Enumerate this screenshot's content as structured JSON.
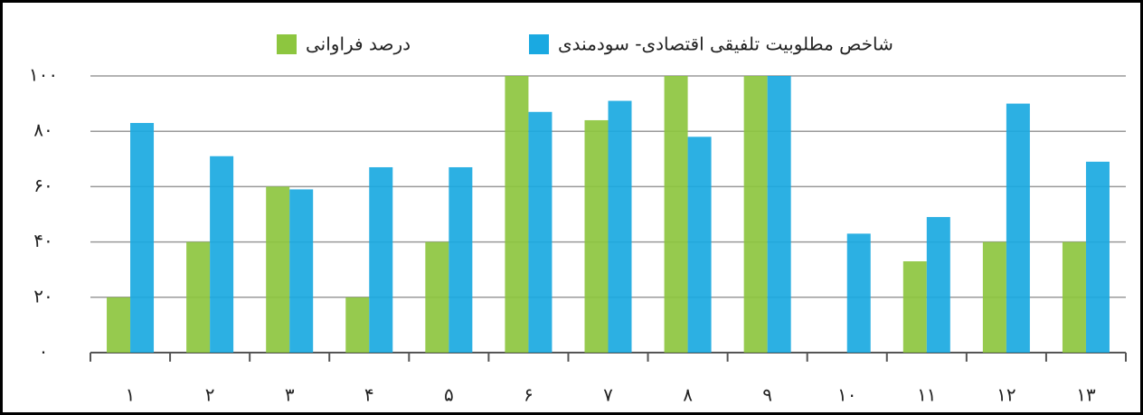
{
  "chart_data": {
    "type": "bar",
    "categories": [
      "۱",
      "۲",
      "۳",
      "۴",
      "۵",
      "۶",
      "۷",
      "۸",
      "۹",
      "۱۰",
      "۱۱",
      "۱۲",
      "۱۳"
    ],
    "series": [
      {
        "name": "درصد فراوانی",
        "color": "#8dc63f",
        "values": [
          20,
          40,
          60,
          20,
          40,
          100,
          84,
          100,
          100,
          0,
          33,
          40,
          40
        ]
      },
      {
        "name": "شاخص مطلوبیت تلفیقی اقتصادی- سودمندی",
        "color": "#1aa9e1",
        "values": [
          83,
          71,
          59,
          67,
          67,
          87,
          91,
          78,
          100,
          43,
          49,
          90,
          69
        ]
      }
    ],
    "ylim": [
      0,
      100
    ],
    "yticks": [
      {
        "value": 0,
        "label": "۰"
      },
      {
        "value": 20,
        "label": "۲۰"
      },
      {
        "value": 40,
        "label": "۴۰"
      },
      {
        "value": 60,
        "label": "۶۰"
      },
      {
        "value": 80,
        "label": "۸۰"
      },
      {
        "value": 100,
        "label": "۱۰۰"
      }
    ],
    "grid": true
  }
}
